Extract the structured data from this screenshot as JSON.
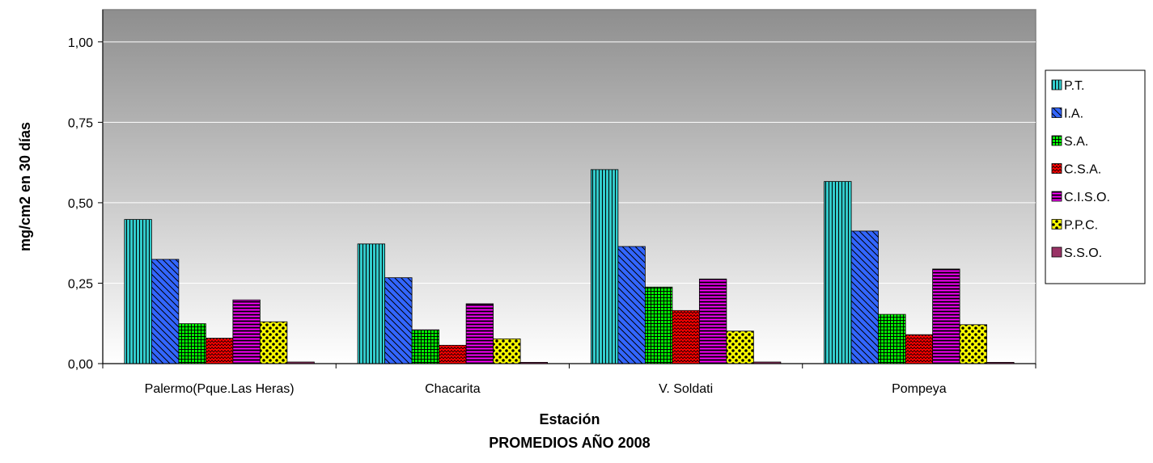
{
  "chart_data": {
    "type": "bar",
    "xlabel": "Estación",
    "subtitle": "PROMEDIOS AÑO 2008",
    "ylabel": "mg/cm2 en 30 días",
    "ylim": [
      0,
      1.1
    ],
    "yticks": [
      "0,00",
      "0,25",
      "0,50",
      "0,75",
      "1,00"
    ],
    "ytick_values": [
      0,
      0.25,
      0.5,
      0.75,
      1.0
    ],
    "categories": [
      "Palermo(Pque.Las Heras)",
      "Chacarita",
      "V. Soldati",
      "Pompeya"
    ],
    "legend_position": "right",
    "grid": true,
    "series": [
      {
        "name": "P.T.",
        "values": [
          0.448,
          0.372,
          0.603,
          0.566
        ],
        "color": "#33CCCC",
        "pattern": "vertical"
      },
      {
        "name": "I.A.",
        "values": [
          0.324,
          0.267,
          0.364,
          0.412
        ],
        "color": "#3366FF",
        "pattern": "diagonal"
      },
      {
        "name": "S.A.",
        "values": [
          0.124,
          0.105,
          0.238,
          0.153
        ],
        "color": "#00FF00",
        "pattern": "grid"
      },
      {
        "name": "C.S.A.",
        "values": [
          0.079,
          0.057,
          0.165,
          0.09
        ],
        "color": "#FF0000",
        "pattern": "wave"
      },
      {
        "name": "C.I.S.O.",
        "values": [
          0.198,
          0.186,
          0.263,
          0.294
        ],
        "color": "#FF00FF",
        "pattern": "horizontal"
      },
      {
        "name": "P.P.C.",
        "values": [
          0.13,
          0.077,
          0.101,
          0.121
        ],
        "color": "#FFFF00",
        "pattern": "dots"
      },
      {
        "name": "S.S.O.",
        "values": [
          0.005,
          0.004,
          0.005,
          0.004
        ],
        "color": "#993366",
        "pattern": "solid"
      }
    ]
  }
}
